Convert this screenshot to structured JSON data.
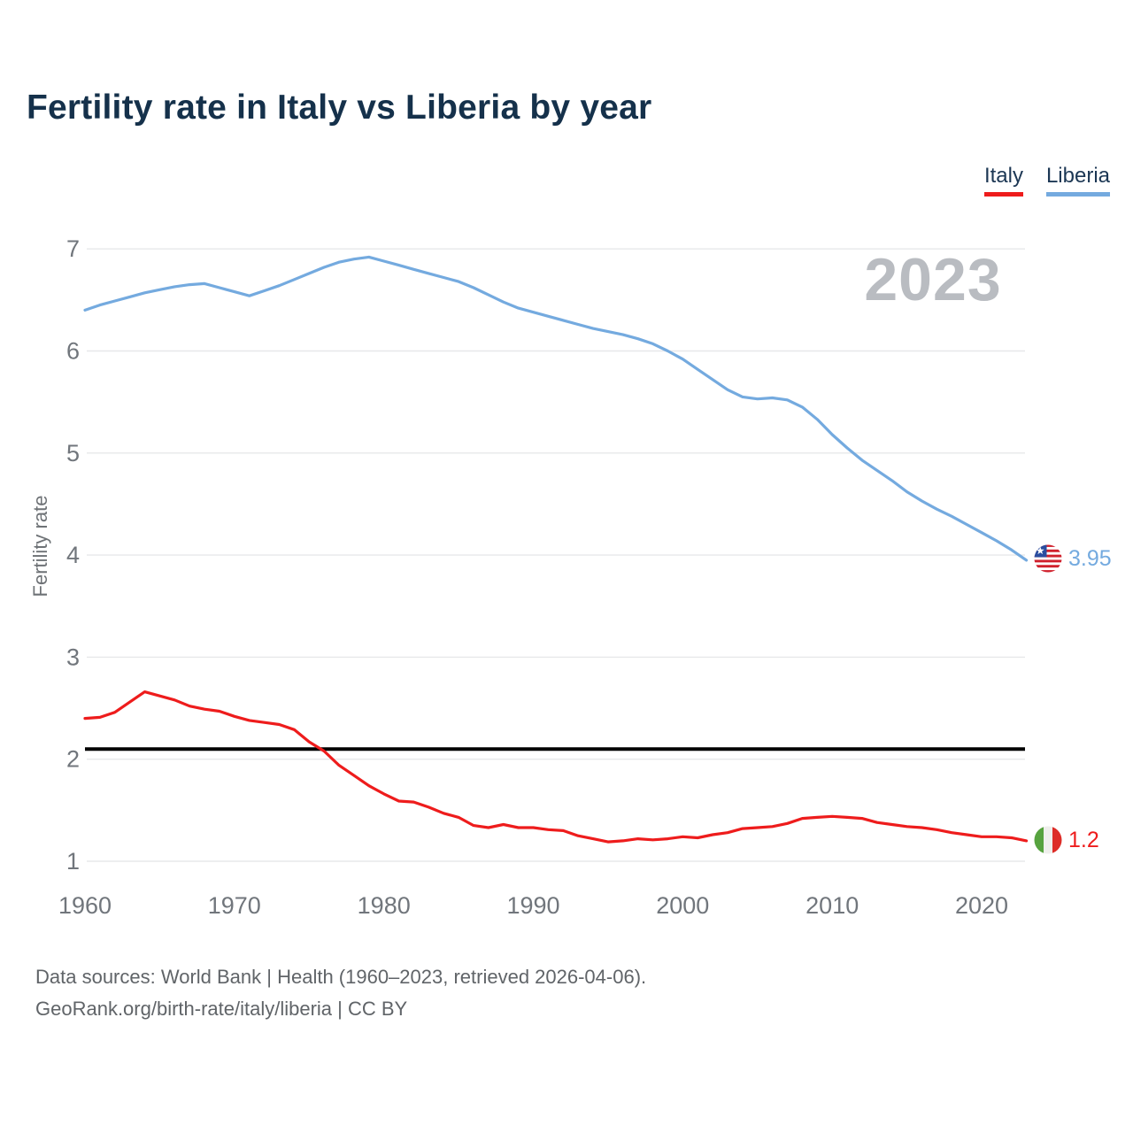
{
  "title": "Fertility rate in Italy vs Liberia by year",
  "watermark": "2023",
  "legend": [
    {
      "label": "Italy",
      "color": "#ee1c1c"
    },
    {
      "label": "Liberia",
      "color": "#74aadf"
    }
  ],
  "end_labels": [
    {
      "series": "Liberia",
      "value": "3.95",
      "flag": "liberia-flag",
      "color": "#74aadf"
    },
    {
      "series": "Italy",
      "value": "1.2",
      "flag": "italy-flag",
      "color": "#ee1c1c"
    }
  ],
  "footer": {
    "line1": "Data sources: World Bank | Health (1960–2023, retrieved 2026-04-06).",
    "line2": "GeoRank.org/birth-rate/italy/liberia | CC BY"
  },
  "chart_data": {
    "type": "line",
    "title": "Fertility rate in Italy vs Liberia by year",
    "xlabel": "",
    "ylabel": "Fertility rate",
    "ylim": [
      1,
      7
    ],
    "yticks": [
      1,
      2,
      3,
      4,
      5,
      6,
      7
    ],
    "xticks": [
      1960,
      1970,
      1980,
      1990,
      2000,
      2010,
      2020
    ],
    "grid": "horizontal",
    "legend_position": "top-right",
    "reference_line": {
      "value": 2.1,
      "color": "#000000"
    },
    "x": [
      1960,
      1961,
      1962,
      1963,
      1964,
      1965,
      1966,
      1967,
      1968,
      1969,
      1970,
      1971,
      1972,
      1973,
      1974,
      1975,
      1976,
      1977,
      1978,
      1979,
      1980,
      1981,
      1982,
      1983,
      1984,
      1985,
      1986,
      1987,
      1988,
      1989,
      1990,
      1991,
      1992,
      1993,
      1994,
      1995,
      1996,
      1997,
      1998,
      1999,
      2000,
      2001,
      2002,
      2003,
      2004,
      2005,
      2006,
      2007,
      2008,
      2009,
      2010,
      2011,
      2012,
      2013,
      2014,
      2015,
      2016,
      2017,
      2018,
      2019,
      2020,
      2021,
      2022,
      2023
    ],
    "series": [
      {
        "name": "Liberia",
        "color": "#74aadf",
        "end_value": 3.95,
        "values": [
          6.4,
          6.45,
          6.49,
          6.53,
          6.57,
          6.6,
          6.63,
          6.65,
          6.66,
          6.62,
          6.58,
          6.54,
          6.59,
          6.64,
          6.7,
          6.76,
          6.82,
          6.87,
          6.9,
          6.92,
          6.88,
          6.84,
          6.8,
          6.76,
          6.72,
          6.68,
          6.62,
          6.55,
          6.48,
          6.42,
          6.38,
          6.34,
          6.3,
          6.26,
          6.22,
          6.19,
          6.16,
          6.12,
          6.07,
          6.0,
          5.92,
          5.82,
          5.72,
          5.62,
          5.55,
          5.53,
          5.54,
          5.52,
          5.45,
          5.33,
          5.18,
          5.05,
          4.93,
          4.83,
          4.73,
          4.62,
          4.53,
          4.45,
          4.38,
          4.3,
          4.22,
          4.14,
          4.05,
          3.95
        ]
      },
      {
        "name": "Italy",
        "color": "#ee1c1c",
        "end_value": 1.2,
        "values": [
          2.4,
          2.41,
          2.46,
          2.56,
          2.66,
          2.62,
          2.58,
          2.52,
          2.49,
          2.47,
          2.42,
          2.38,
          2.36,
          2.34,
          2.29,
          2.17,
          2.08,
          1.94,
          1.84,
          1.74,
          1.66,
          1.59,
          1.58,
          1.53,
          1.47,
          1.43,
          1.35,
          1.33,
          1.36,
          1.33,
          1.33,
          1.31,
          1.3,
          1.25,
          1.22,
          1.19,
          1.2,
          1.22,
          1.21,
          1.22,
          1.24,
          1.23,
          1.26,
          1.28,
          1.32,
          1.33,
          1.34,
          1.37,
          1.42,
          1.43,
          1.44,
          1.43,
          1.42,
          1.38,
          1.36,
          1.34,
          1.33,
          1.31,
          1.28,
          1.26,
          1.24,
          1.24,
          1.23,
          1.2
        ]
      }
    ]
  }
}
